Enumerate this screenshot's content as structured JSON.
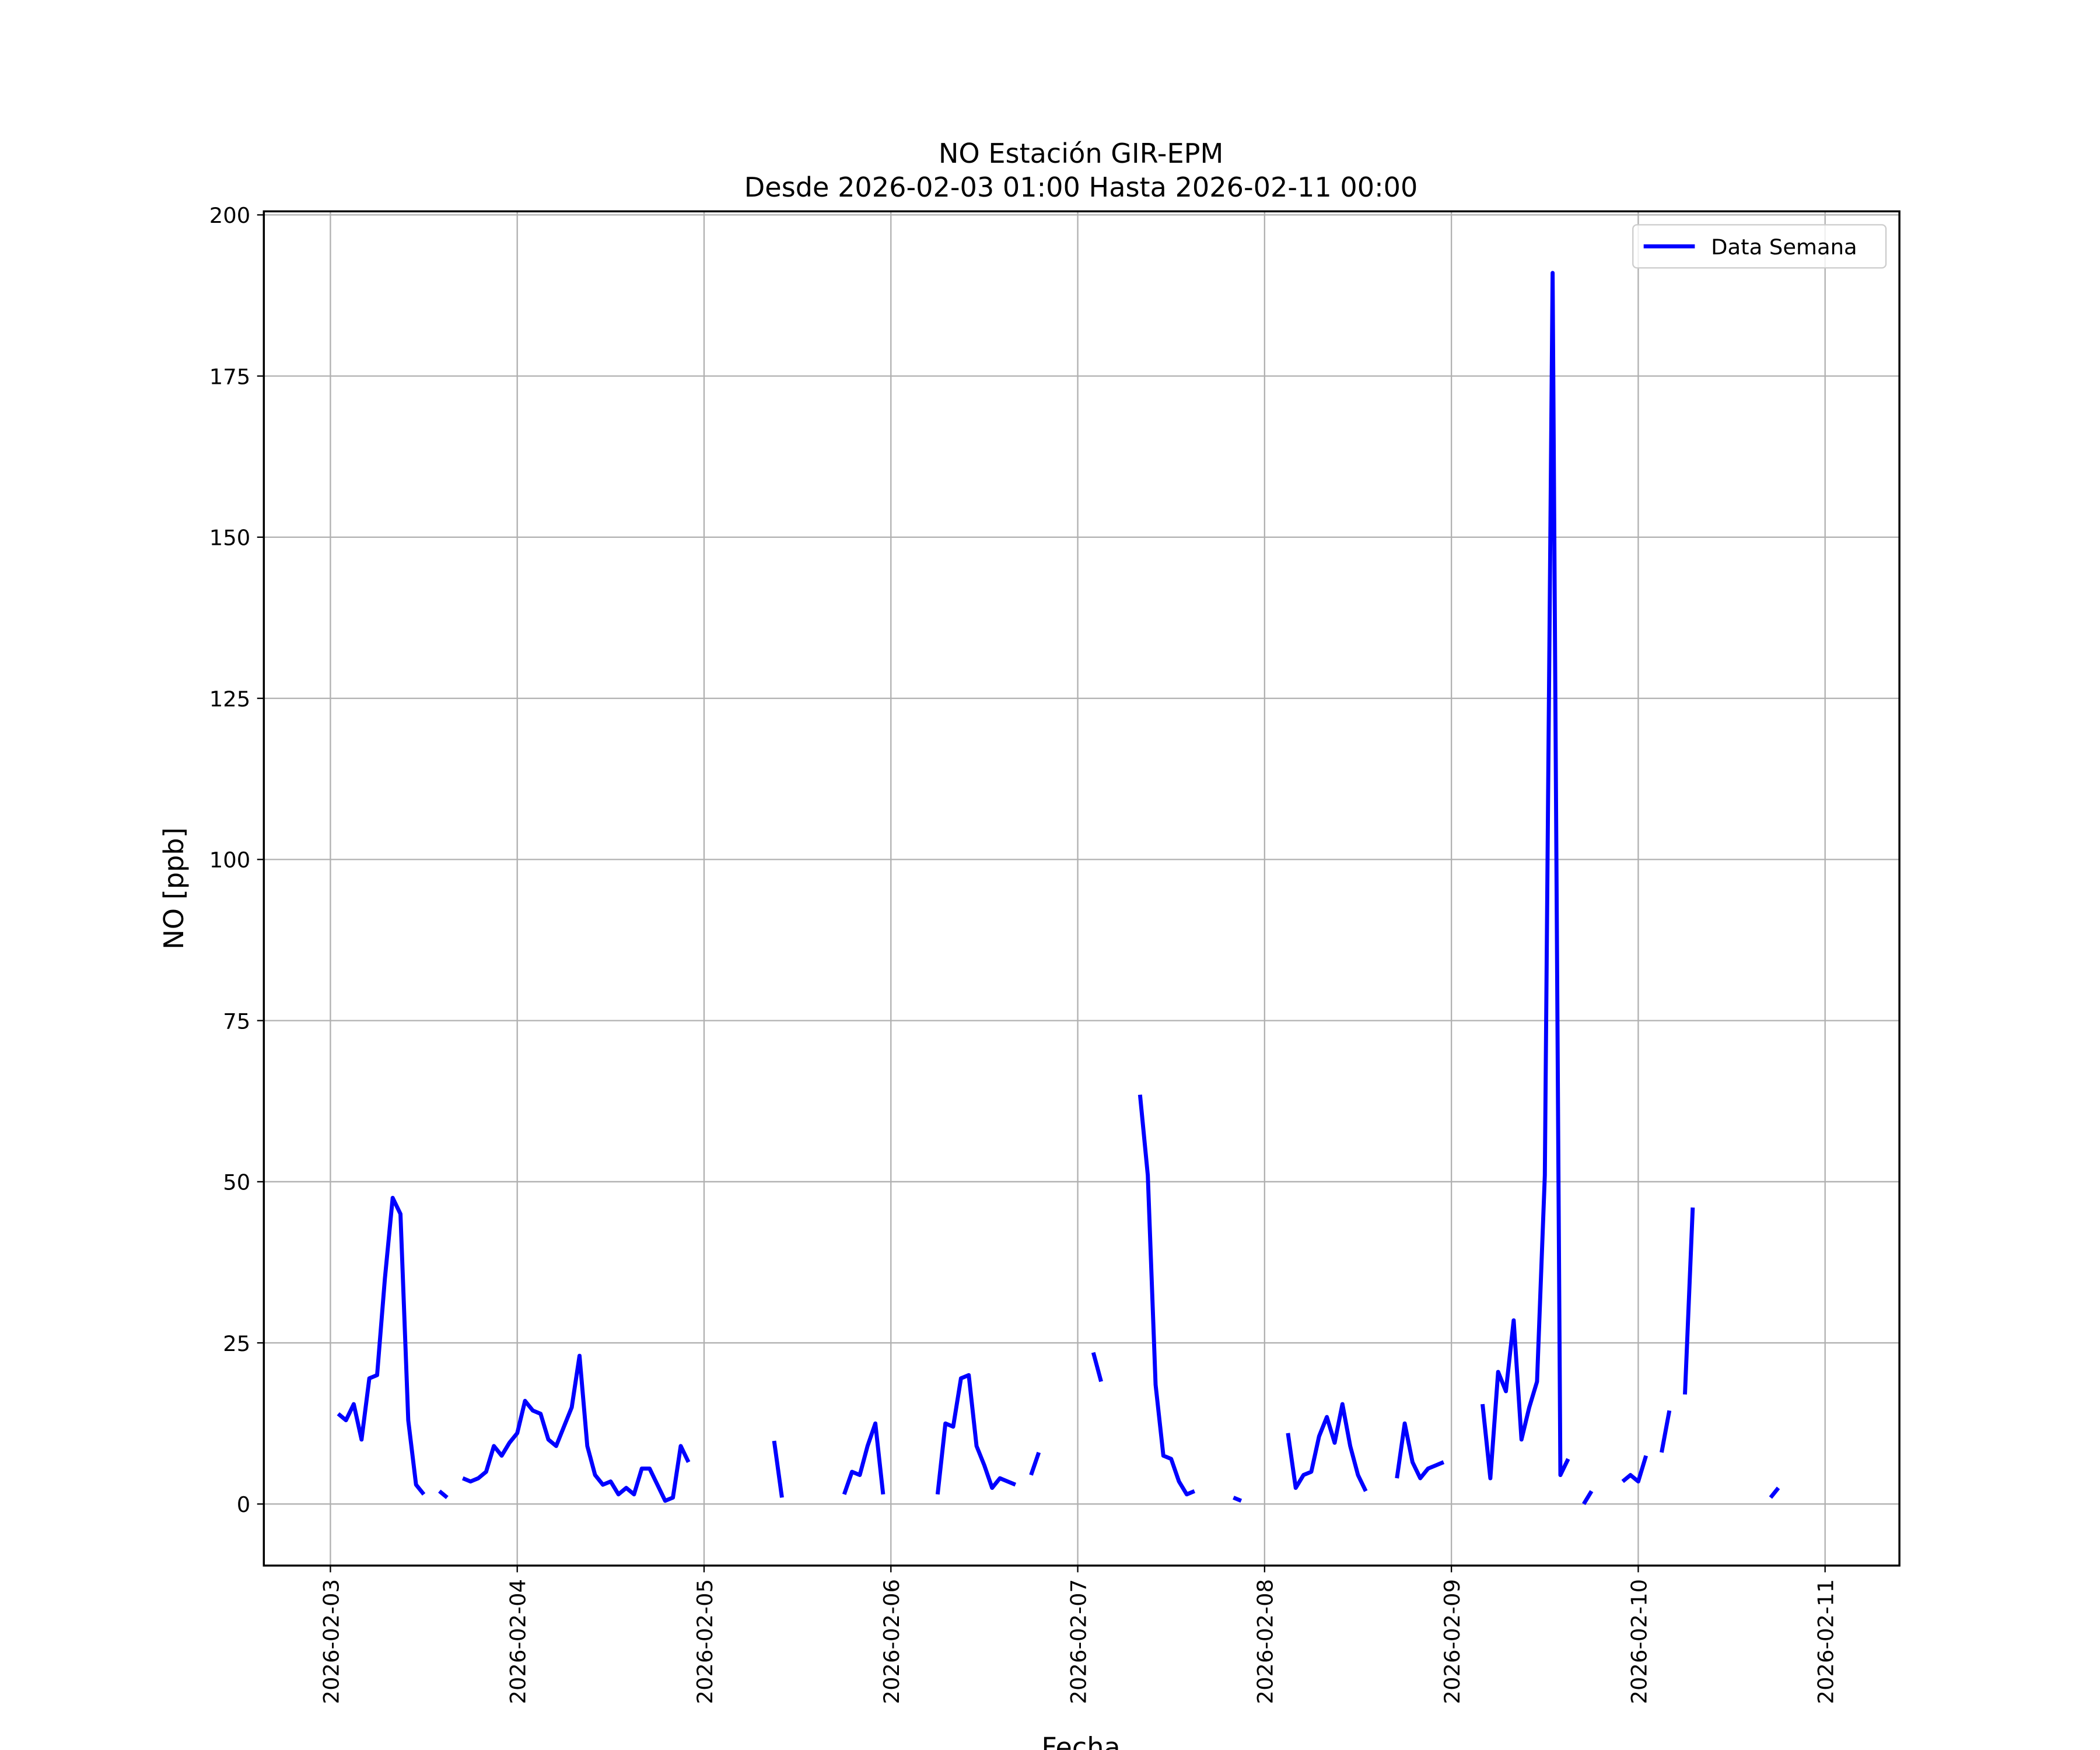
{
  "chart_data": {
    "type": "line",
    "title": "NO Estación GIR-EPM",
    "subtitle": "Desde 2026-02-03 01:00 Hasta 2026-02-11 00:00",
    "xlabel": "Fecha",
    "ylabel": "NO [ppb]",
    "x": [
      "2026-02-03 01:00",
      "2026-02-03 02:00",
      "2026-02-03 03:00",
      "2026-02-03 04:00",
      "2026-02-03 05:00",
      "2026-02-03 06:00",
      "2026-02-03 07:00",
      "2026-02-03 08:00",
      "2026-02-03 09:00",
      "2026-02-03 10:00",
      "2026-02-03 11:00",
      "2026-02-03 12:00",
      "2026-02-03 13:00",
      "2026-02-03 14:00",
      "2026-02-03 15:00",
      "2026-02-03 16:00",
      "2026-02-03 17:00",
      "2026-02-03 18:00",
      "2026-02-03 19:00",
      "2026-02-03 20:00",
      "2026-02-03 21:00",
      "2026-02-03 22:00",
      "2026-02-03 23:00",
      "2026-02-04 00:00",
      "2026-02-04 01:00",
      "2026-02-04 02:00",
      "2026-02-04 03:00",
      "2026-02-04 04:00",
      "2026-02-04 05:00",
      "2026-02-04 06:00",
      "2026-02-04 07:00",
      "2026-02-04 08:00",
      "2026-02-04 09:00",
      "2026-02-04 10:00",
      "2026-02-04 11:00",
      "2026-02-04 12:00",
      "2026-02-04 13:00",
      "2026-02-04 14:00",
      "2026-02-04 15:00",
      "2026-02-04 16:00",
      "2026-02-04 17:00",
      "2026-02-04 18:00",
      "2026-02-04 19:00",
      "2026-02-04 20:00",
      "2026-02-04 21:00",
      "2026-02-04 22:00",
      "2026-02-04 23:00",
      "2026-02-05 00:00",
      "2026-02-05 01:00",
      "2026-02-05 02:00",
      "2026-02-05 03:00",
      "2026-02-05 04:00",
      "2026-02-05 05:00",
      "2026-02-05 06:00",
      "2026-02-05 07:00",
      "2026-02-05 08:00",
      "2026-02-05 09:00",
      "2026-02-05 10:00",
      "2026-02-05 11:00",
      "2026-02-05 12:00",
      "2026-02-05 13:00",
      "2026-02-05 14:00",
      "2026-02-05 15:00",
      "2026-02-05 16:00",
      "2026-02-05 17:00",
      "2026-02-05 18:00",
      "2026-02-05 19:00",
      "2026-02-05 20:00",
      "2026-02-05 21:00",
      "2026-02-05 22:00",
      "2026-02-05 23:00",
      "2026-02-06 00:00",
      "2026-02-06 01:00",
      "2026-02-06 02:00",
      "2026-02-06 03:00",
      "2026-02-06 04:00",
      "2026-02-06 05:00",
      "2026-02-06 06:00",
      "2026-02-06 07:00",
      "2026-02-06 08:00",
      "2026-02-06 09:00",
      "2026-02-06 10:00",
      "2026-02-06 11:00",
      "2026-02-06 12:00",
      "2026-02-06 13:00",
      "2026-02-06 14:00",
      "2026-02-06 15:00",
      "2026-02-06 16:00",
      "2026-02-06 17:00",
      "2026-02-06 18:00",
      "2026-02-06 19:00",
      "2026-02-06 20:00",
      "2026-02-06 21:00",
      "2026-02-06 22:00",
      "2026-02-06 23:00",
      "2026-02-07 00:00",
      "2026-02-07 01:00",
      "2026-02-07 02:00",
      "2026-02-07 03:00",
      "2026-02-07 04:00",
      "2026-02-07 05:00",
      "2026-02-07 06:00",
      "2026-02-07 07:00",
      "2026-02-07 08:00",
      "2026-02-07 09:00",
      "2026-02-07 10:00",
      "2026-02-07 11:00",
      "2026-02-07 12:00",
      "2026-02-07 13:00",
      "2026-02-07 14:00",
      "2026-02-07 15:00",
      "2026-02-07 16:00",
      "2026-02-07 17:00",
      "2026-02-07 18:00",
      "2026-02-07 19:00",
      "2026-02-07 20:00",
      "2026-02-07 21:00",
      "2026-02-07 22:00",
      "2026-02-07 23:00",
      "2026-02-08 00:00",
      "2026-02-08 01:00",
      "2026-02-08 02:00",
      "2026-02-08 03:00",
      "2026-02-08 04:00",
      "2026-02-08 05:00",
      "2026-02-08 06:00",
      "2026-02-08 07:00",
      "2026-02-08 08:00",
      "2026-02-08 09:00",
      "2026-02-08 10:00",
      "2026-02-08 11:00",
      "2026-02-08 12:00",
      "2026-02-08 13:00",
      "2026-02-08 14:00",
      "2026-02-08 15:00",
      "2026-02-08 16:00",
      "2026-02-08 17:00",
      "2026-02-08 18:00",
      "2026-02-08 19:00",
      "2026-02-08 20:00",
      "2026-02-08 21:00",
      "2026-02-08 22:00",
      "2026-02-08 23:00",
      "2026-02-09 00:00",
      "2026-02-09 01:00",
      "2026-02-09 02:00",
      "2026-02-09 03:00",
      "2026-02-09 04:00",
      "2026-02-09 05:00",
      "2026-02-09 06:00",
      "2026-02-09 07:00",
      "2026-02-09 08:00",
      "2026-02-09 09:00",
      "2026-02-09 10:00",
      "2026-02-09 11:00",
      "2026-02-09 12:00",
      "2026-02-09 13:00",
      "2026-02-09 14:00",
      "2026-02-09 15:00",
      "2026-02-09 16:00",
      "2026-02-09 17:00",
      "2026-02-09 18:00",
      "2026-02-09 19:00",
      "2026-02-09 20:00",
      "2026-02-09 21:00",
      "2026-02-09 22:00",
      "2026-02-09 23:00",
      "2026-02-10 00:00",
      "2026-02-10 01:00",
      "2026-02-10 02:00",
      "2026-02-10 03:00",
      "2026-02-10 04:00",
      "2026-02-10 05:00",
      "2026-02-10 06:00",
      "2026-02-10 07:00",
      "2026-02-10 08:00",
      "2026-02-10 09:00",
      "2026-02-10 10:00",
      "2026-02-10 11:00",
      "2026-02-10 12:00",
      "2026-02-10 13:00",
      "2026-02-10 14:00",
      "2026-02-10 15:00",
      "2026-02-10 16:00",
      "2026-02-10 17:00",
      "2026-02-10 18:00",
      "2026-02-10 19:00",
      "2026-02-10 20:00",
      "2026-02-10 21:00",
      "2026-02-10 22:00",
      "2026-02-10 23:00",
      "2026-02-11 00:00"
    ],
    "series": [
      {
        "name": "Data Semana",
        "color": "#0000ff",
        "values": [
          14,
          13,
          15.5,
          10,
          19.5,
          20,
          35,
          47.5,
          45,
          13,
          3,
          1.5,
          null,
          2,
          1,
          null,
          4,
          3.5,
          4,
          5,
          9,
          7.5,
          9.5,
          11,
          16,
          14.5,
          14,
          10,
          9,
          12,
          15,
          23,
          9,
          4.5,
          3,
          3.5,
          1.5,
          2.5,
          1.5,
          5.5,
          5.5,
          3,
          0.5,
          1,
          9,
          6.5,
          null,
          null,
          null,
          null,
          null,
          null,
          null,
          null,
          null,
          null,
          9.8,
          1,
          null,
          null,
          null,
          null,
          null,
          null,
          null,
          1.5,
          5,
          4.5,
          9,
          12.5,
          1.5,
          null,
          null,
          null,
          null,
          null,
          null,
          1.5,
          12.5,
          12,
          19.5,
          20,
          9,
          6,
          2.5,
          4,
          3.5,
          3,
          null,
          4.5,
          8,
          null,
          null,
          null,
          null,
          null,
          null,
          23.5,
          19,
          null,
          null,
          null,
          null,
          63.5,
          51,
          18.5,
          7.5,
          7,
          3.5,
          1.5,
          2,
          null,
          null,
          null,
          null,
          1,
          0.5,
          null,
          null,
          null,
          null,
          null,
          11,
          2.5,
          4.5,
          5,
          10.5,
          13.5,
          9.5,
          15.5,
          9,
          4.5,
          2,
          null,
          null,
          null,
          4,
          12.5,
          6.5,
          4,
          5.5,
          6,
          6.5,
          null,
          null,
          null,
          null,
          15.5,
          4,
          20.5,
          17.5,
          28.5,
          10,
          15,
          19,
          51,
          191,
          4.5,
          7,
          null,
          0,
          2,
          null,
          null,
          null,
          3.5,
          4.5,
          3.5,
          7.5,
          null,
          8,
          14.5,
          null,
          17,
          46,
          null,
          null,
          null,
          null,
          null,
          null,
          null,
          null,
          null,
          1,
          2.5,
          null,
          null,
          null,
          null,
          null,
          null
        ]
      }
    ],
    "xlim": [
      "2026-02-02 15:27",
      "2026-02-11 09:33"
    ],
    "xticks": [
      "2026-02-03",
      "2026-02-04",
      "2026-02-05",
      "2026-02-06",
      "2026-02-07",
      "2026-02-08",
      "2026-02-09",
      "2026-02-10",
      "2026-02-11"
    ],
    "ylim": [
      -9.55,
      200.55
    ],
    "yticks": [
      0,
      25,
      50,
      75,
      100,
      125,
      150,
      175,
      200
    ],
    "grid": true,
    "legend": "upper-right"
  }
}
